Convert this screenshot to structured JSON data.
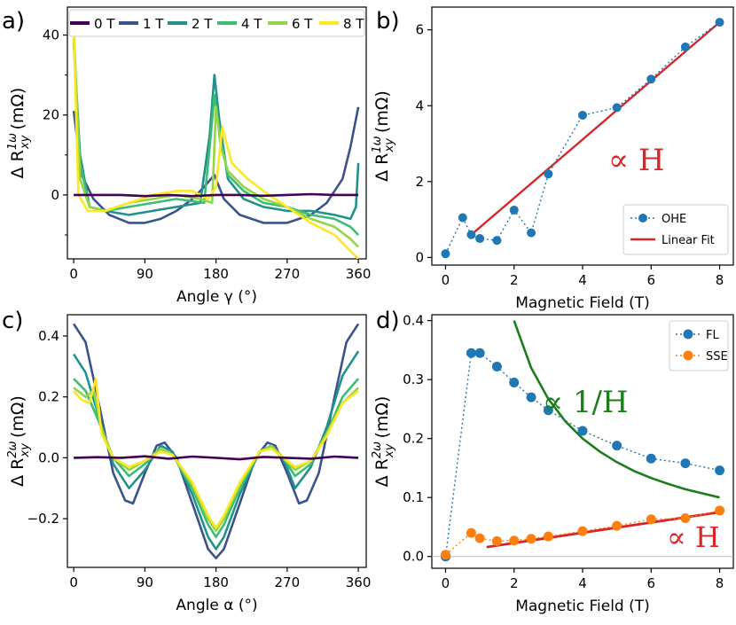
{
  "panels": {
    "a": {
      "label": "a)"
    },
    "b": {
      "label": "b)"
    },
    "c": {
      "label": "c)"
    },
    "d": {
      "label": "d)"
    }
  },
  "colors": {
    "0T": "#440154",
    "1T": "#3b528b",
    "2T": "#21918c",
    "4T": "#3dbc74",
    "6T": "#90d743",
    "8T": "#fde725",
    "ohe": "#1f77b4",
    "fl": "#1f77b4",
    "sse": "#ff7f0e",
    "linear_fit": "#d62728",
    "inv_fit": "#1a7f1a"
  },
  "chart_data": [
    {
      "id": "a",
      "type": "line",
      "xlabel": "Angle γ (°)",
      "ylabel": "Δ R^{1ω}_{xy} (mΩ)",
      "xlim": [
        -8,
        370
      ],
      "ylim": [
        -16,
        47
      ],
      "xticks": [
        0,
        90,
        180,
        270,
        360
      ],
      "yticks": [
        0,
        20,
        40
      ],
      "legend": "top",
      "series": [
        {
          "name": "0 T",
          "x": [
            0,
            30,
            60,
            90,
            120,
            150,
            180,
            210,
            240,
            270,
            300,
            330,
            360
          ],
          "values": [
            0,
            0,
            0,
            -0.3,
            0,
            -0.3,
            0,
            0,
            -0.2,
            0,
            0.2,
            0,
            0
          ]
        },
        {
          "name": "1 T",
          "x": [
            0,
            10,
            25,
            45,
            70,
            90,
            110,
            130,
            150,
            165,
            178,
            190,
            210,
            240,
            270,
            300,
            320,
            340,
            350,
            360
          ],
          "values": [
            21,
            5,
            -1,
            -5,
            -7,
            -7,
            -6,
            -4,
            -1,
            2,
            5,
            -1,
            -5,
            -7,
            -7,
            -5,
            -2,
            4,
            12,
            22
          ]
        },
        {
          "name": "2 T",
          "x": [
            0,
            8,
            20,
            40,
            70,
            100,
            130,
            160,
            172,
            178,
            184,
            195,
            215,
            240,
            270,
            300,
            330,
            350,
            357,
            360
          ],
          "values": [
            38,
            10,
            -3,
            -4,
            -5,
            -4,
            -3,
            -2,
            15,
            30,
            19,
            4,
            -1,
            -3,
            -4,
            -4,
            -5,
            -6,
            -3,
            8
          ]
        },
        {
          "name": "4 T",
          "x": [
            0,
            8,
            20,
            40,
            70,
            100,
            130,
            165,
            172,
            178,
            185,
            195,
            215,
            240,
            270,
            300,
            330,
            350,
            360
          ],
          "values": [
            39,
            8,
            -3,
            -4,
            -3,
            -2,
            -1,
            -2,
            12,
            25,
            15,
            5,
            1,
            -2,
            -3,
            -5,
            -6,
            -8,
            -10
          ]
        },
        {
          "name": "6 T",
          "x": [
            0,
            8,
            20,
            40,
            70,
            100,
            130,
            160,
            175,
            180,
            186,
            195,
            215,
            240,
            270,
            300,
            330,
            350,
            360
          ],
          "values": [
            42,
            4,
            -3,
            -4,
            -2,
            -1,
            0,
            -1,
            -2,
            22,
            12,
            6,
            2,
            -1,
            -3,
            -6,
            -8,
            -11,
            -13
          ]
        },
        {
          "name": "8 T",
          "x": [
            0,
            6,
            18,
            40,
            70,
            100,
            130,
            150,
            170,
            180,
            188,
            200,
            220,
            240,
            270,
            300,
            330,
            350,
            360
          ],
          "values": [
            41,
            0,
            -4,
            -4,
            -2,
            0,
            1,
            1,
            -1,
            2,
            17,
            8,
            4,
            1,
            -3,
            -7,
            -10,
            -14,
            -16
          ]
        }
      ]
    },
    {
      "id": "b",
      "type": "scatter",
      "xlabel": "Magnetic Field (T)",
      "ylabel": "Δ R^{1ω}_{xy} (mΩ)",
      "xlim": [
        -0.4,
        8.4
      ],
      "ylim": [
        -0.2,
        6.6
      ],
      "xticks": [
        0,
        2,
        4,
        6,
        8
      ],
      "yticks": [
        0,
        2,
        4,
        6
      ],
      "legend": "bottom-right",
      "annotation": "∝ H",
      "series": [
        {
          "name": "OHE",
          "x": [
            0,
            0.5,
            0.75,
            1,
            1.5,
            2,
            2.5,
            3,
            4,
            5,
            6,
            7,
            8
          ],
          "values": [
            0.1,
            1.05,
            0.6,
            0.5,
            0.45,
            1.25,
            0.65,
            2.2,
            3.75,
            3.95,
            4.7,
            5.55,
            6.2
          ]
        },
        {
          "name": "Linear Fit",
          "x": [
            0.75,
            8
          ],
          "values": [
            0.6,
            6.2
          ]
        }
      ]
    },
    {
      "id": "c",
      "type": "line",
      "xlabel": "Angle α (°)",
      "ylabel": "Δ R^{2ω}_{xy} (mΩ)",
      "xlim": [
        -8,
        370
      ],
      "ylim": [
        -0.36,
        0.47
      ],
      "xticks": [
        0,
        90,
        180,
        270,
        360
      ],
      "yticks": [
        -0.2,
        0.0,
        0.2,
        0.4
      ],
      "series": [
        {
          "name": "0 T",
          "x": [
            0,
            30,
            60,
            90,
            120,
            150,
            180,
            210,
            240,
            270,
            300,
            330,
            360
          ],
          "values": [
            0.0,
            0.002,
            0.0,
            0.005,
            -0.003,
            0.004,
            0.0,
            -0.005,
            0.003,
            0.0,
            -0.003,
            0.004,
            0.0
          ]
        },
        {
          "name": "1 T",
          "x": [
            0,
            15,
            30,
            50,
            65,
            75,
            90,
            105,
            115,
            130,
            150,
            170,
            180,
            190,
            210,
            230,
            245,
            255,
            270,
            285,
            295,
            310,
            330,
            345,
            360
          ],
          "values": [
            0.44,
            0.38,
            0.2,
            -0.05,
            -0.14,
            -0.15,
            -0.05,
            0.04,
            0.05,
            0.0,
            -0.15,
            -0.3,
            -0.33,
            -0.3,
            -0.15,
            0.0,
            0.05,
            0.04,
            -0.05,
            -0.15,
            -0.14,
            -0.05,
            0.2,
            0.38,
            0.44
          ]
        },
        {
          "name": "2 T",
          "x": [
            0,
            15,
            30,
            50,
            70,
            90,
            110,
            125,
            150,
            170,
            180,
            190,
            210,
            235,
            250,
            265,
            280,
            300,
            320,
            340,
            360
          ],
          "values": [
            0.34,
            0.28,
            0.15,
            -0.02,
            -0.1,
            -0.04,
            0.04,
            0.02,
            -0.12,
            -0.26,
            -0.3,
            -0.26,
            -0.12,
            0.02,
            0.04,
            0.0,
            -0.1,
            -0.03,
            0.1,
            0.27,
            0.35
          ]
        },
        {
          "name": "4 T",
          "x": [
            0,
            15,
            30,
            50,
            70,
            90,
            110,
            125,
            150,
            170,
            180,
            190,
            210,
            235,
            250,
            265,
            280,
            300,
            320,
            340,
            360
          ],
          "values": [
            0.26,
            0.22,
            0.13,
            0.0,
            -0.06,
            -0.02,
            0.03,
            0.01,
            -0.1,
            -0.22,
            -0.26,
            -0.22,
            -0.1,
            0.02,
            0.04,
            0.0,
            -0.06,
            -0.02,
            0.08,
            0.2,
            0.26
          ]
        },
        {
          "name": "6 T",
          "x": [
            0,
            15,
            25,
            35,
            50,
            70,
            90,
            110,
            125,
            150,
            170,
            180,
            190,
            210,
            235,
            250,
            265,
            280,
            300,
            320,
            340,
            360
          ],
          "values": [
            0.23,
            0.2,
            0.22,
            0.1,
            0.0,
            -0.04,
            -0.01,
            0.03,
            0.01,
            -0.09,
            -0.2,
            -0.24,
            -0.2,
            -0.09,
            0.02,
            0.04,
            0.0,
            -0.04,
            -0.01,
            0.08,
            0.18,
            0.23
          ]
        },
        {
          "name": "8 T",
          "x": [
            0,
            10,
            20,
            28,
            35,
            50,
            70,
            90,
            110,
            125,
            150,
            170,
            180,
            190,
            210,
            235,
            250,
            265,
            280,
            300,
            320,
            340,
            360
          ],
          "values": [
            0.22,
            0.19,
            0.18,
            0.26,
            0.08,
            0.0,
            -0.03,
            -0.01,
            0.02,
            0.01,
            -0.08,
            -0.19,
            -0.23,
            -0.19,
            -0.08,
            0.02,
            0.03,
            0.0,
            -0.03,
            -0.01,
            0.07,
            0.18,
            0.22
          ]
        }
      ]
    },
    {
      "id": "d",
      "type": "scatter",
      "xlabel": "Magnetic Field (T)",
      "ylabel": "Δ R^{2ω}_{xy} (mΩ)",
      "xlim": [
        -0.4,
        8.4
      ],
      "ylim": [
        -0.02,
        0.41
      ],
      "xticks": [
        0,
        2,
        4,
        6,
        8
      ],
      "yticks": [
        0.0,
        0.1,
        0.2,
        0.3,
        0.4
      ],
      "legend": "top-right",
      "annotations": [
        "∝ 1/H",
        "∝ H"
      ],
      "series": [
        {
          "name": "FL",
          "x": [
            0,
            0.75,
            1,
            1.5,
            2,
            2.5,
            3,
            4,
            5,
            6,
            7,
            8
          ],
          "values": [
            0.0,
            0.345,
            0.345,
            0.322,
            0.295,
            0.27,
            0.248,
            0.213,
            0.188,
            0.166,
            0.158,
            0.146
          ]
        },
        {
          "name": "SSE",
          "x": [
            0,
            0.75,
            1,
            1.5,
            2,
            2.5,
            3,
            4,
            5,
            6,
            7,
            8
          ],
          "values": [
            0.003,
            0.04,
            0.031,
            0.026,
            0.027,
            0.03,
            0.034,
            0.043,
            0.052,
            0.063,
            0.065,
            0.078
          ]
        },
        {
          "name": "",
          "x": [
            2,
            2.5,
            3,
            3.5,
            4,
            4.5,
            5,
            5.5,
            6,
            6.5,
            7,
            7.5,
            8
          ],
          "values": [
            0.4,
            0.32,
            0.267,
            0.229,
            0.2,
            0.178,
            0.16,
            0.145,
            0.133,
            0.123,
            0.114,
            0.107,
            0.1
          ]
        },
        {
          "name": "",
          "x": [
            1.2,
            8
          ],
          "values": [
            0.016,
            0.075
          ]
        }
      ]
    }
  ]
}
